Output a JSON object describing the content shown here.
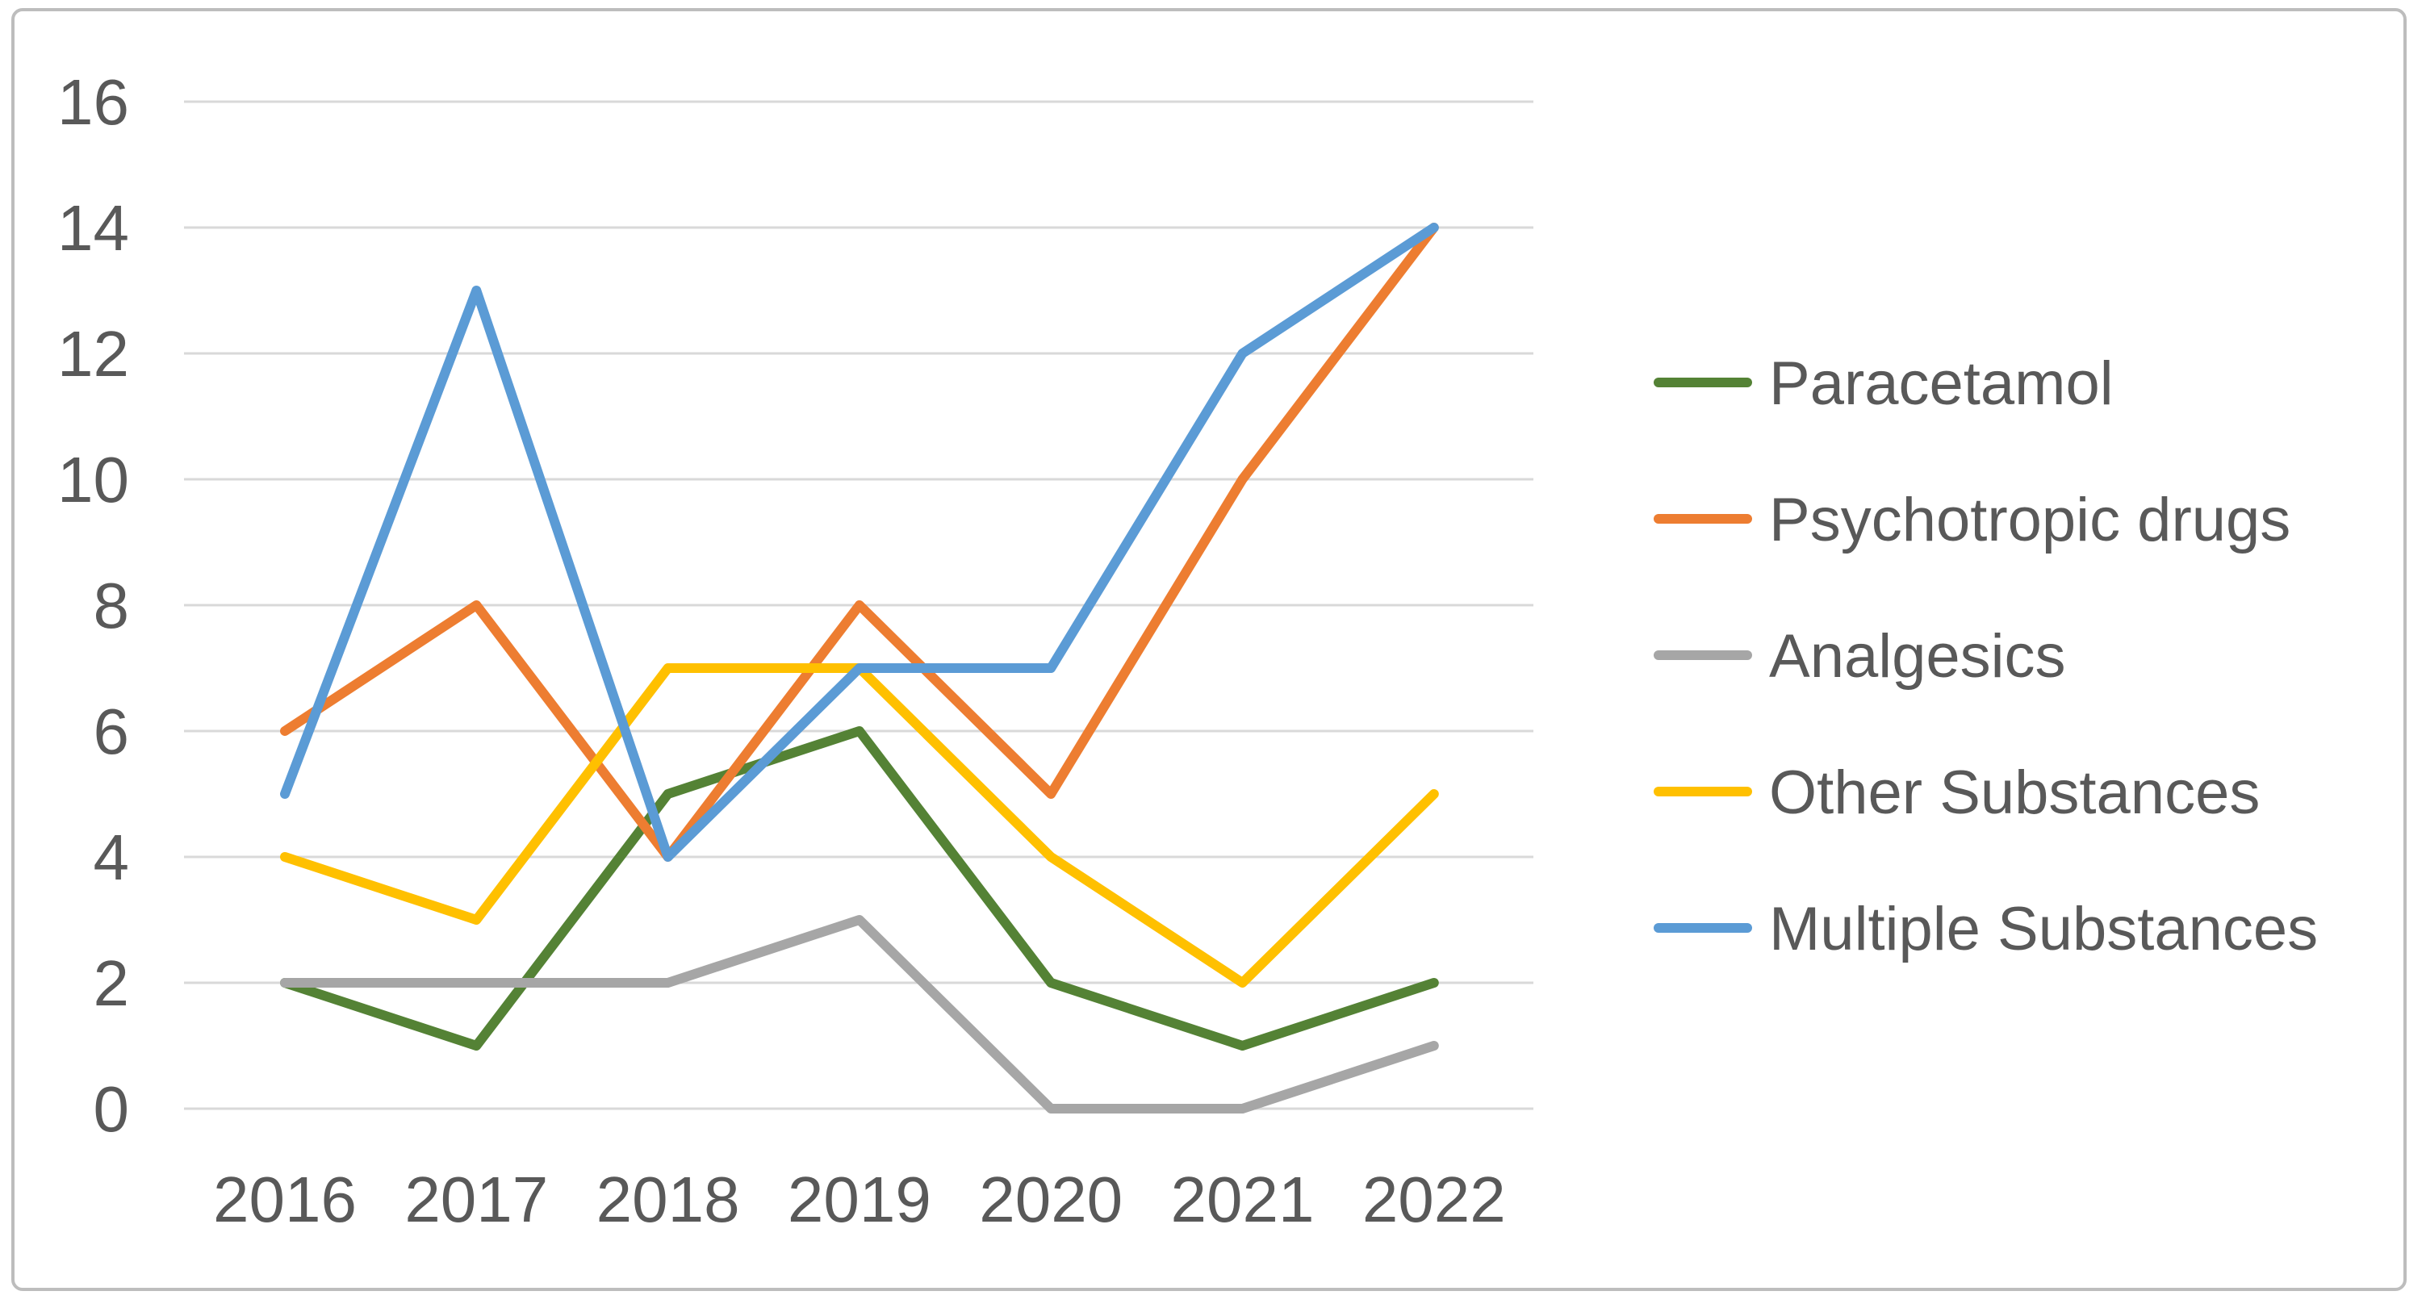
{
  "chart_data": {
    "type": "line",
    "categories": [
      "2016",
      "2017",
      "2018",
      "2019",
      "2020",
      "2021",
      "2022"
    ],
    "y_ticks": [
      0,
      2,
      4,
      6,
      8,
      10,
      12,
      14,
      16
    ],
    "ylim": [
      0,
      16
    ],
    "grid": true,
    "legend_position": "right",
    "series": [
      {
        "name": "Paracetamol",
        "color": "#548235",
        "values": [
          2,
          1,
          5,
          6,
          2,
          1,
          2
        ]
      },
      {
        "name": "Psychotropic drugs",
        "color": "#ED7D31",
        "values": [
          6,
          8,
          4,
          8,
          5,
          10,
          14
        ]
      },
      {
        "name": "Analgesics",
        "color": "#A6A6A6",
        "values": [
          2,
          2,
          2,
          3,
          0,
          0,
          1
        ]
      },
      {
        "name": "Other Substances",
        "color": "#FFC000",
        "values": [
          4,
          3,
          7,
          7,
          4,
          2,
          5
        ]
      },
      {
        "name": "Multiple Substances",
        "color": "#5B9BD5",
        "values": [
          5,
          13,
          4,
          7,
          7,
          12,
          14
        ]
      }
    ]
  },
  "styles": {
    "grid_color": "#D9D9D9",
    "tick_label_color": "#595959",
    "legend_label_color": "#595959",
    "frame_border_color": "#BDBDBD",
    "background_color": "#FFFFFF"
  }
}
